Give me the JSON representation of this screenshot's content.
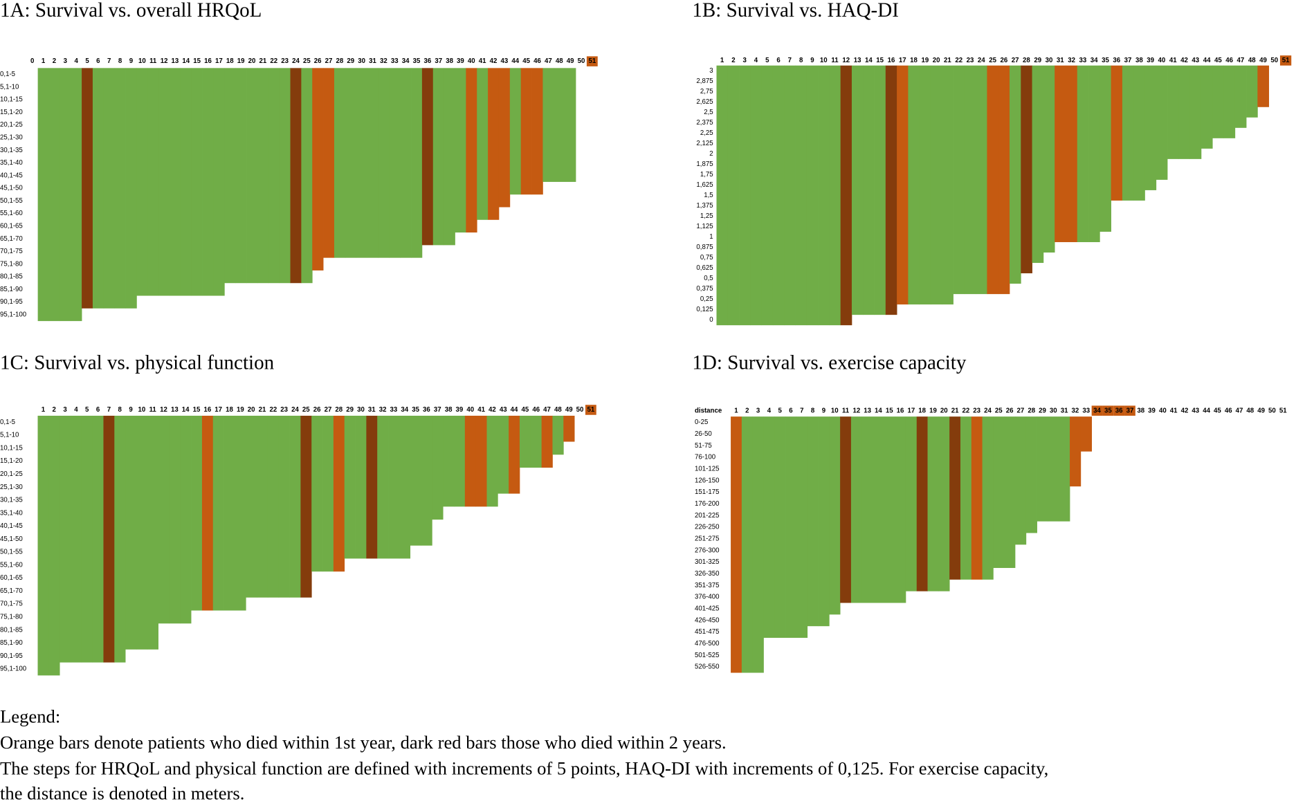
{
  "chart_data": [
    {
      "type": "step-bars",
      "title": "1A: Survival vs. overall HRQoL",
      "categories": [
        0,
        1,
        2,
        3,
        4,
        5,
        6,
        7,
        8,
        9,
        10,
        11,
        12,
        13,
        14,
        15,
        16,
        17,
        18,
        19,
        20,
        21,
        22,
        23,
        24,
        25,
        26,
        27,
        28,
        29,
        30,
        31,
        32,
        33,
        34,
        35,
        36,
        37,
        38,
        39,
        40,
        41,
        42,
        43,
        44,
        45,
        46,
        47,
        48,
        49,
        50,
        51
      ],
      "rows": [
        "0,1-5",
        "5,1-10",
        "10,1-15",
        "15,1-20",
        "20,1-25",
        "25,1-30",
        "30,1-35",
        "35,1-40",
        "40,1-45",
        "45,1-50",
        "50,1-55",
        "55,1-60",
        "60,1-65",
        "65,1-70",
        "70,1-75",
        "75,1-80",
        "80,1-85",
        "85,1-90",
        "90,1-95",
        "95,1-100"
      ],
      "values": [
        null,
        20,
        20,
        20,
        20,
        19,
        19,
        19,
        19,
        19,
        18,
        18,
        18,
        18,
        18,
        18,
        18,
        18,
        17,
        17,
        17,
        17,
        17,
        17,
        17,
        17,
        16,
        15,
        15,
        15,
        15,
        15,
        15,
        15,
        15,
        15,
        14,
        14,
        14,
        13,
        13,
        12,
        12,
        11,
        10,
        10,
        10,
        9,
        9,
        9,
        null,
        null
      ],
      "colors": [
        null,
        "#70ad47",
        "#70ad47",
        "#70ad47",
        "#70ad47",
        "#843c0c",
        "#70ad47",
        "#70ad47",
        "#70ad47",
        "#70ad47",
        "#70ad47",
        "#70ad47",
        "#70ad47",
        "#70ad47",
        "#70ad47",
        "#70ad47",
        "#70ad47",
        "#70ad47",
        "#70ad47",
        "#70ad47",
        "#70ad47",
        "#70ad47",
        "#70ad47",
        "#70ad47",
        "#843c0c",
        "#70ad47",
        "#c55a11",
        "#c55a11",
        "#70ad47",
        "#70ad47",
        "#70ad47",
        "#70ad47",
        "#70ad47",
        "#70ad47",
        "#70ad47",
        "#70ad47",
        "#843c0c",
        "#70ad47",
        "#70ad47",
        "#70ad47",
        "#c55a11",
        "#70ad47",
        "#c55a11",
        "#c55a11",
        "#70ad47",
        "#c55a11",
        "#c55a11",
        "#70ad47",
        "#70ad47",
        "#70ad47",
        null,
        null
      ],
      "highlight": [
        51
      ],
      "highlight_color": "#c55a11"
    },
    {
      "type": "step-bars",
      "title": "1B: Survival vs. HAQ-DI",
      "categories": [
        1,
        2,
        3,
        4,
        5,
        6,
        7,
        8,
        9,
        10,
        11,
        12,
        13,
        14,
        15,
        16,
        17,
        18,
        19,
        20,
        21,
        22,
        23,
        24,
        25,
        26,
        27,
        28,
        29,
        30,
        31,
        32,
        33,
        34,
        35,
        36,
        37,
        38,
        39,
        40,
        41,
        42,
        43,
        44,
        45,
        46,
        47,
        48,
        49,
        50,
        51
      ],
      "rows": [
        "3",
        "2,875",
        "2,75",
        "2,625",
        "2,5",
        "2,375",
        "2,25",
        "2,125",
        "2",
        "1,875",
        "1,75",
        "1,625",
        "1,5",
        "1,375",
        "1,25",
        "1,125",
        "1",
        "0,875",
        "0,75",
        "0,625",
        "0,5",
        "0,375",
        "0,25",
        "0,125",
        "0"
      ],
      "values": [
        25,
        25,
        25,
        25,
        25,
        25,
        25,
        25,
        25,
        25,
        25,
        25,
        24,
        24,
        24,
        24,
        23,
        23,
        23,
        23,
        23,
        22,
        22,
        22,
        22,
        22,
        21,
        20,
        19,
        18,
        17,
        17,
        17,
        17,
        16,
        13,
        13,
        13,
        12,
        11,
        9,
        9,
        9,
        8,
        7,
        7,
        6,
        5,
        4,
        null,
        null
      ],
      "colors": [
        "#70ad47",
        "#70ad47",
        "#70ad47",
        "#70ad47",
        "#70ad47",
        "#70ad47",
        "#70ad47",
        "#70ad47",
        "#70ad47",
        "#70ad47",
        "#70ad47",
        "#843c0c",
        "#70ad47",
        "#70ad47",
        "#70ad47",
        "#843c0c",
        "#c55a11",
        "#70ad47",
        "#70ad47",
        "#70ad47",
        "#70ad47",
        "#70ad47",
        "#70ad47",
        "#70ad47",
        "#c55a11",
        "#c55a11",
        "#70ad47",
        "#843c0c",
        "#70ad47",
        "#70ad47",
        "#c55a11",
        "#c55a11",
        "#70ad47",
        "#70ad47",
        "#70ad47",
        "#c55a11",
        "#70ad47",
        "#70ad47",
        "#70ad47",
        "#70ad47",
        "#70ad47",
        "#70ad47",
        "#70ad47",
        "#70ad47",
        "#70ad47",
        "#70ad47",
        "#70ad47",
        "#70ad47",
        "#c55a11",
        null,
        null
      ],
      "highlight": [
        51
      ],
      "highlight_color": "#c55a11"
    },
    {
      "type": "step-bars",
      "title": "1C: Survival vs. physical function",
      "categories": [
        1,
        2,
        3,
        4,
        5,
        6,
        7,
        8,
        9,
        10,
        11,
        12,
        13,
        14,
        15,
        16,
        17,
        18,
        19,
        20,
        21,
        22,
        23,
        24,
        25,
        26,
        27,
        28,
        29,
        30,
        31,
        32,
        33,
        34,
        35,
        36,
        37,
        38,
        39,
        40,
        41,
        42,
        43,
        44,
        45,
        46,
        47,
        48,
        49,
        50,
        51
      ],
      "rows": [
        "0,1-5",
        "5,1-10",
        "10,1-15",
        "15,1-20",
        "20,1-25",
        "25,1-30",
        "30,1-35",
        "35,1-40",
        "40,1-45",
        "45,1-50",
        "50,1-55",
        "55,1-60",
        "60,1-65",
        "65,1-70",
        "70,1-75",
        "75,1-80",
        "80,1-85",
        "85,1-90",
        "90,1-95",
        "95,1-100"
      ],
      "values": [
        20,
        20,
        19,
        19,
        19,
        19,
        19,
        19,
        18,
        18,
        18,
        16,
        16,
        16,
        15,
        15,
        15,
        15,
        15,
        14,
        14,
        14,
        14,
        14,
        14,
        12,
        12,
        12,
        11,
        11,
        11,
        11,
        11,
        11,
        10,
        10,
        8,
        7,
        7,
        7,
        7,
        7,
        6,
        6,
        4,
        4,
        4,
        3,
        2,
        null,
        null
      ],
      "colors": [
        "#70ad47",
        "#70ad47",
        "#70ad47",
        "#70ad47",
        "#70ad47",
        "#70ad47",
        "#843c0c",
        "#70ad47",
        "#70ad47",
        "#70ad47",
        "#70ad47",
        "#70ad47",
        "#70ad47",
        "#70ad47",
        "#70ad47",
        "#c55a11",
        "#70ad47",
        "#70ad47",
        "#70ad47",
        "#70ad47",
        "#70ad47",
        "#70ad47",
        "#70ad47",
        "#70ad47",
        "#843c0c",
        "#70ad47",
        "#70ad47",
        "#c55a11",
        "#70ad47",
        "#70ad47",
        "#843c0c",
        "#70ad47",
        "#70ad47",
        "#70ad47",
        "#70ad47",
        "#70ad47",
        "#70ad47",
        "#70ad47",
        "#70ad47",
        "#c55a11",
        "#c55a11",
        "#70ad47",
        "#70ad47",
        "#c55a11",
        "#70ad47",
        "#70ad47",
        "#c55a11",
        "#70ad47",
        "#c55a11",
        null,
        null
      ],
      "highlight": [
        51
      ],
      "highlight_color": "#c55a11"
    },
    {
      "type": "step-bars",
      "title": "1D: Survival vs. exercise capacity",
      "corner": "distance",
      "categories": [
        1,
        2,
        3,
        4,
        5,
        6,
        7,
        8,
        9,
        10,
        11,
        12,
        13,
        14,
        15,
        16,
        17,
        18,
        19,
        20,
        21,
        22,
        23,
        24,
        25,
        26,
        27,
        28,
        29,
        30,
        31,
        32,
        33,
        34,
        35,
        36,
        37,
        38,
        39,
        40,
        41,
        42,
        43,
        44,
        45,
        46,
        47,
        48,
        49,
        50,
        51
      ],
      "rows": [
        "0-25",
        "26-50",
        "51-75",
        "76-100",
        "101-125",
        "126-150",
        "151-175",
        "176-200",
        "201-225",
        "226-250",
        "251-275",
        "276-300",
        "301-325",
        "326-350",
        "351-375",
        "376-400",
        "401-425",
        "426-450",
        "451-475",
        "476-500",
        "501-525",
        "526-550"
      ],
      "values": [
        22,
        22,
        22,
        19,
        19,
        19,
        19,
        18,
        18,
        17,
        16,
        16,
        16,
        16,
        16,
        16,
        15,
        15,
        15,
        15,
        14,
        14,
        14,
        14,
        13,
        13,
        11,
        10,
        9,
        9,
        9,
        6,
        3,
        null,
        null,
        null,
        null,
        null,
        null,
        null,
        null,
        null,
        null,
        null,
        null,
        null,
        null,
        null,
        null,
        null,
        null
      ],
      "colors": [
        "#c55a11",
        "#70ad47",
        "#70ad47",
        "#70ad47",
        "#70ad47",
        "#70ad47",
        "#70ad47",
        "#70ad47",
        "#70ad47",
        "#70ad47",
        "#843c0c",
        "#70ad47",
        "#70ad47",
        "#70ad47",
        "#70ad47",
        "#70ad47",
        "#70ad47",
        "#843c0c",
        "#70ad47",
        "#70ad47",
        "#843c0c",
        "#70ad47",
        "#c55a11",
        "#70ad47",
        "#70ad47",
        "#70ad47",
        "#70ad47",
        "#70ad47",
        "#70ad47",
        "#70ad47",
        "#70ad47",
        "#c55a11",
        "#c55a11",
        null,
        null,
        null,
        null,
        null,
        null,
        null,
        null,
        null,
        null,
        null,
        null,
        null,
        null,
        null,
        null,
        null,
        null
      ],
      "highlight": [
        34,
        35,
        36,
        37
      ],
      "highlight_color": "#c55a11"
    }
  ],
  "legend": {
    "heading": "Legend:",
    "lines": [
      "Orange bars denote patients who died within 1st year, dark red bars those who died within 2 years.",
      "The steps for HRQoL and physical function are defined with increments of 5 points, HAQ-DI with increments of 0,125. For exercise capacity,",
      "the distance is denoted in meters."
    ]
  }
}
